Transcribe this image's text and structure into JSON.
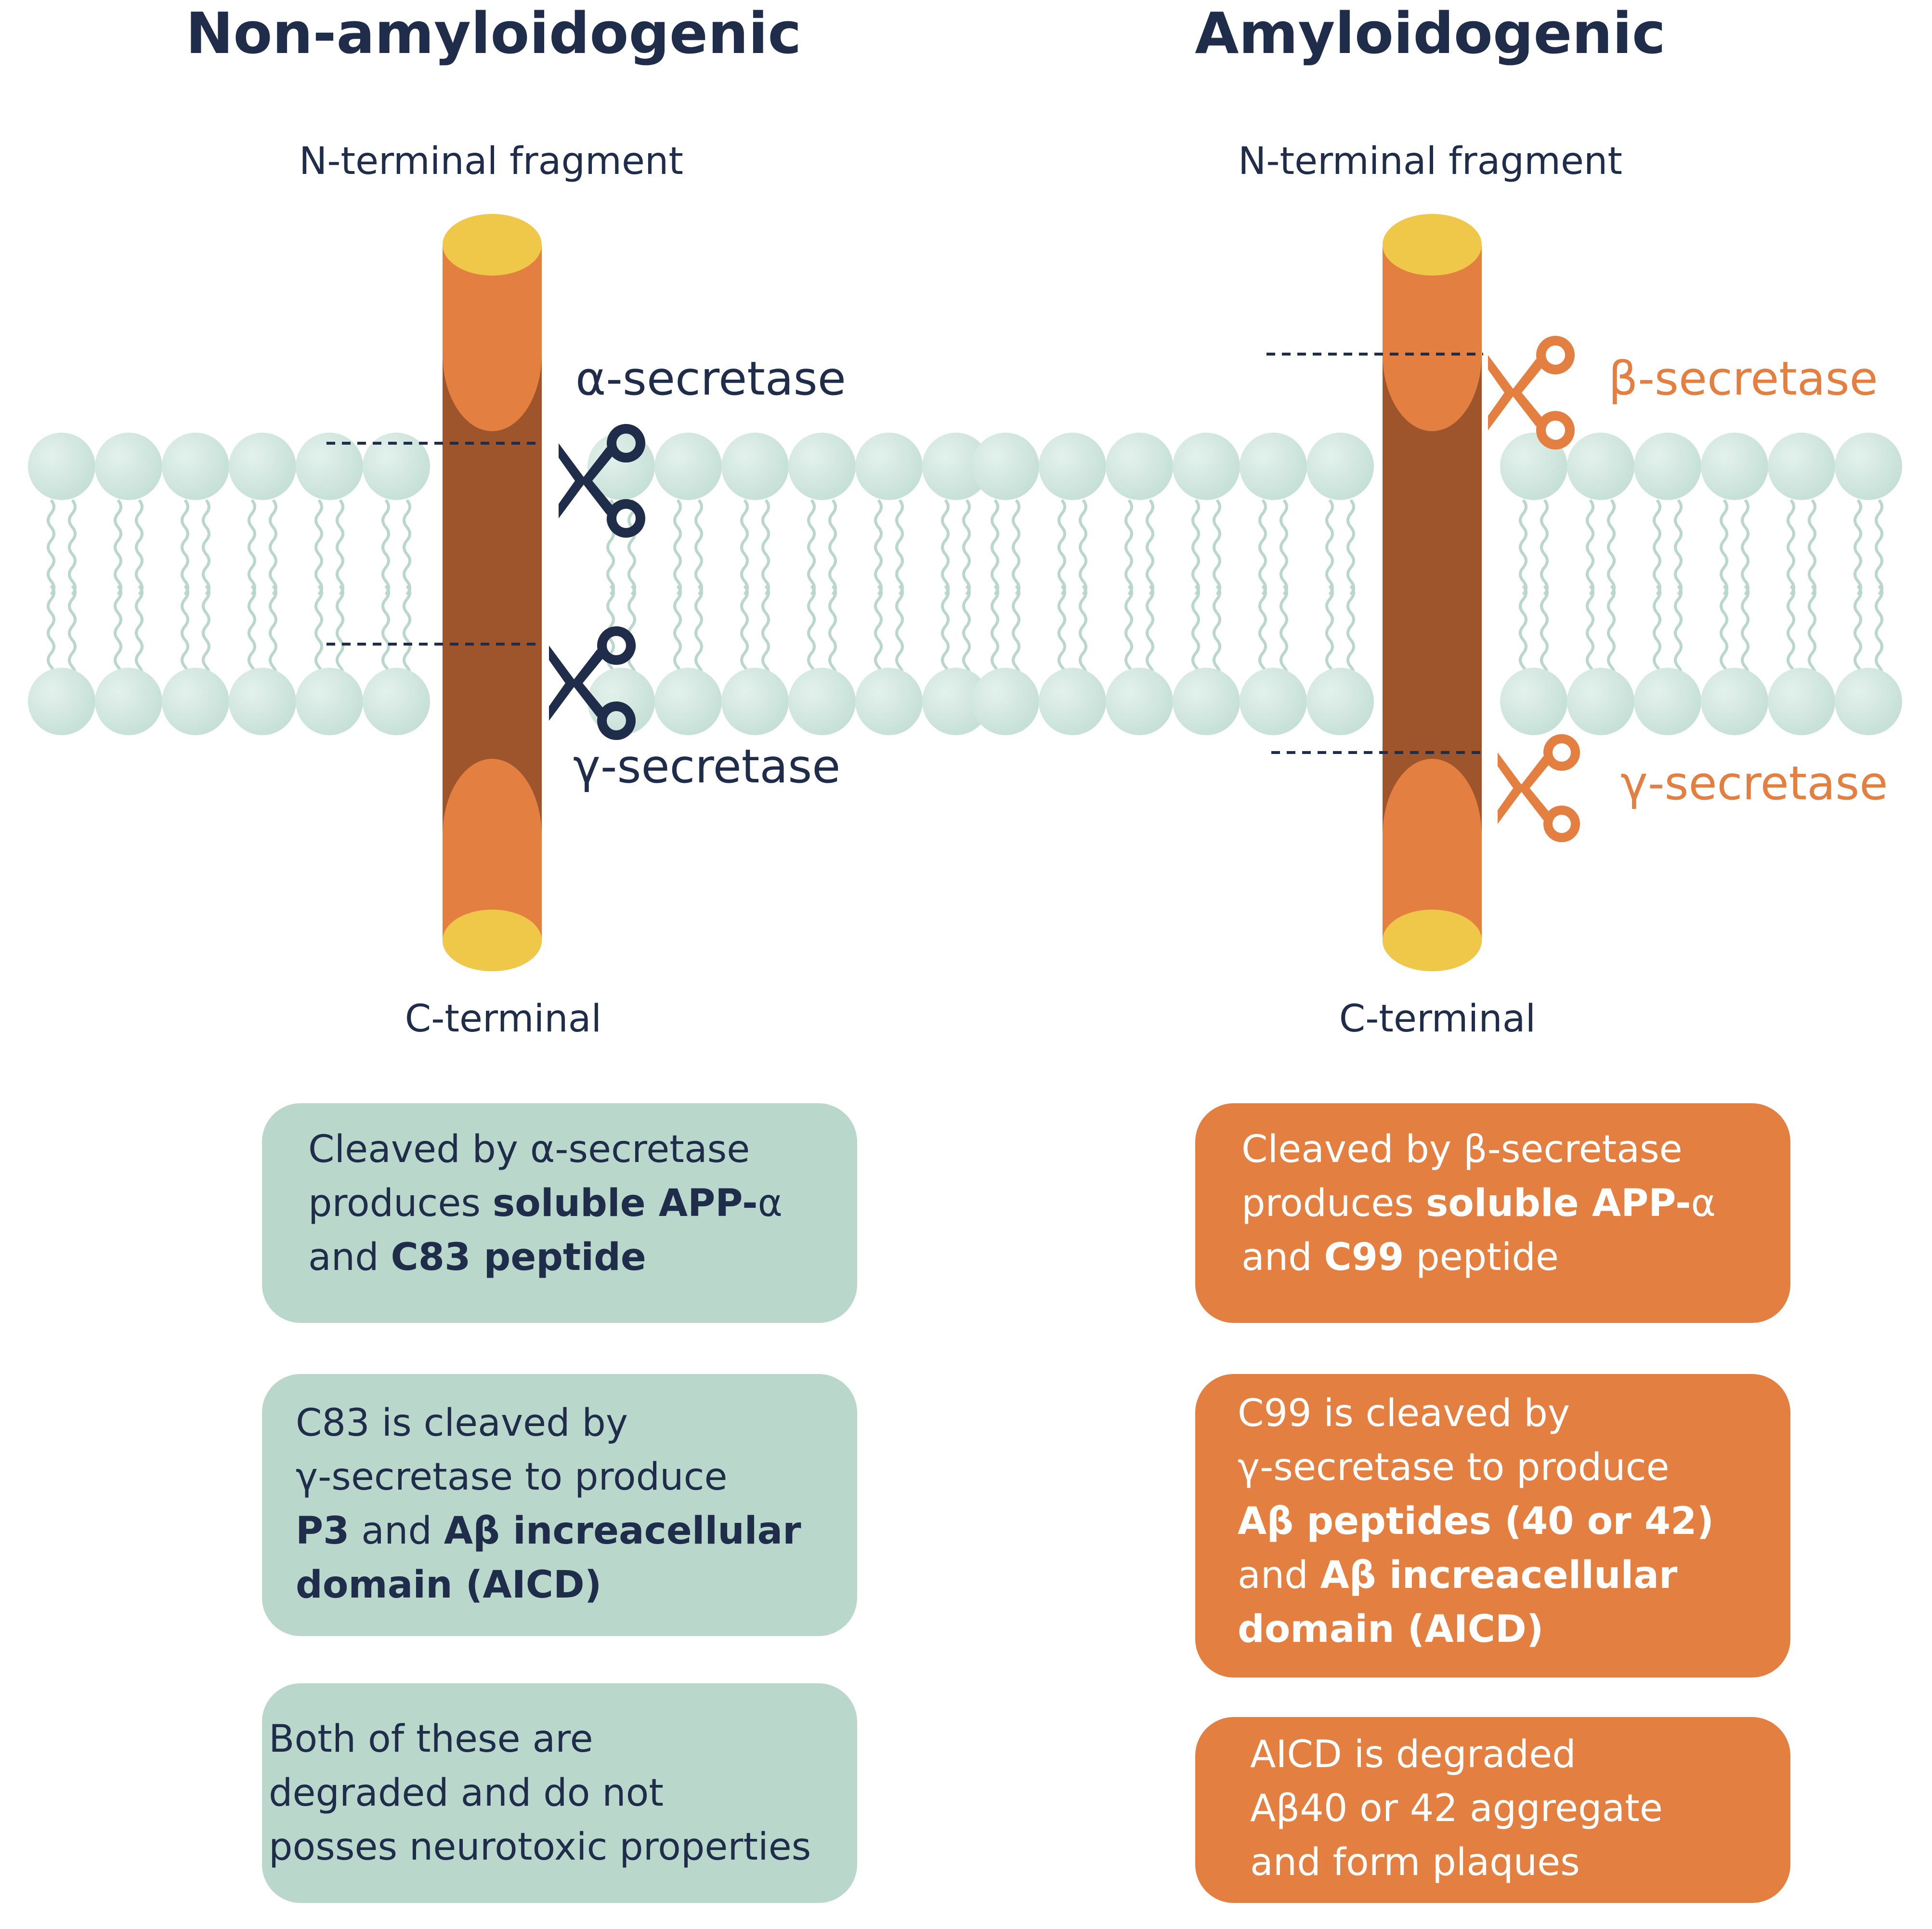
{
  "colors": {
    "navy": "#1f2d4a",
    "orange": "#e47f42",
    "brown": "#9e552b",
    "cap_yellow": "#efc84a",
    "lipid_head": "#c5e0d6",
    "lipid_tail": "#bad7cb",
    "box_green": "#bad7cb"
  },
  "left": {
    "title": "Non-amyloidogenic",
    "n_label": "N-terminal fragment",
    "c_label": "C-terminal",
    "cleave_top": {
      "label": "α-secretase",
      "icon": "scissors-icon"
    },
    "cleave_bottom": {
      "label": "γ-secretase",
      "icon": "scissors-icon"
    },
    "boxes": [
      {
        "lines": [
          [
            [
              "Cleaved by α-secretase",
              false
            ]
          ],
          [
            [
              "produces ",
              false
            ],
            [
              "soluble APP-",
              true
            ],
            [
              "α",
              false
            ]
          ],
          [
            [
              "and ",
              false
            ],
            [
              "C83 peptide",
              true
            ]
          ]
        ]
      },
      {
        "lines": [
          [
            [
              "C83 is cleaved by",
              false
            ]
          ],
          [
            [
              "γ-secretase to produce",
              false
            ]
          ],
          [
            [
              "P3",
              true
            ],
            [
              " and ",
              false
            ],
            [
              "Aβ increacellular",
              true
            ]
          ],
          [
            [
              "domain (AICD)",
              true
            ]
          ]
        ]
      },
      {
        "lines": [
          [
            [
              "Both of these are",
              false
            ]
          ],
          [
            [
              "degraded and do not",
              false
            ]
          ],
          [
            [
              "posses neurotoxic properties",
              false
            ]
          ]
        ]
      }
    ]
  },
  "right": {
    "title": "Amyloidogenic",
    "n_label": "N-terminal fragment",
    "c_label": "C-terminal",
    "cleave_top": {
      "label": "β-secretase",
      "icon": "scissors-icon"
    },
    "cleave_bottom": {
      "label": "γ-secretase",
      "icon": "scissors-icon"
    },
    "boxes": [
      {
        "lines": [
          [
            [
              "Cleaved by β-secretase",
              false
            ]
          ],
          [
            [
              "produces ",
              false
            ],
            [
              "soluble APP-",
              true
            ],
            [
              "α",
              false
            ]
          ],
          [
            [
              "and ",
              false
            ],
            [
              "C99",
              true
            ],
            [
              " peptide",
              false
            ]
          ]
        ]
      },
      {
        "lines": [
          [
            [
              "C99 is cleaved by",
              false
            ]
          ],
          [
            [
              "γ-secretase to produce",
              false
            ]
          ],
          [
            [
              "Aβ peptides (40 or 42)",
              true
            ]
          ],
          [
            [
              "and ",
              false
            ],
            [
              "Aβ increacellular",
              true
            ]
          ],
          [
            [
              "domain (AICD)",
              true
            ]
          ]
        ]
      },
      {
        "lines": [
          [
            [
              "AICD is degraded",
              false
            ]
          ],
          [
            [
              "Aβ40 or 42 aggregate",
              false
            ]
          ],
          [
            [
              "and form plaques",
              false
            ]
          ]
        ]
      }
    ]
  }
}
